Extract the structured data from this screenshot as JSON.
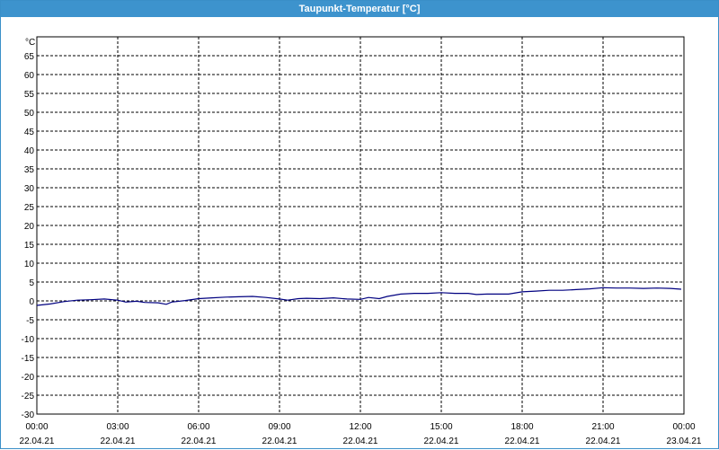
{
  "window": {
    "title": "Taupunkt-Temperatur [°C]"
  },
  "chart_data": {
    "type": "line",
    "title": "Taupunkt-Temperatur [°C]",
    "yunit": "°C",
    "ylim": [
      -30,
      70
    ],
    "yticks": [
      "65",
      "60",
      "55",
      "50",
      "45",
      "40",
      "35",
      "30",
      "25",
      "20",
      "15",
      "10",
      "5",
      "0",
      "-5",
      "-10",
      "-15",
      "-20",
      "-25",
      "-30"
    ],
    "ytick_values": [
      65,
      60,
      55,
      50,
      45,
      40,
      35,
      30,
      25,
      20,
      15,
      10,
      5,
      0,
      -5,
      -10,
      -15,
      -20,
      -25,
      -30
    ],
    "xlim": [
      "22.04.21 00:00",
      "23.04.21 00:00"
    ],
    "xticks": [
      {
        "time": "00:00",
        "date": "22.04.21",
        "hour": 0
      },
      {
        "time": "03:00",
        "date": "22.04.21",
        "hour": 3
      },
      {
        "time": "06:00",
        "date": "22.04.21",
        "hour": 6
      },
      {
        "time": "09:00",
        "date": "22.04.21",
        "hour": 9
      },
      {
        "time": "12:00",
        "date": "22.04.21",
        "hour": 12
      },
      {
        "time": "15:00",
        "date": "22.04.21",
        "hour": 15
      },
      {
        "time": "18:00",
        "date": "22.04.21",
        "hour": 18
      },
      {
        "time": "21:00",
        "date": "22.04.21",
        "hour": 21
      },
      {
        "time": "00:00",
        "date": "23.04.21",
        "hour": 24
      }
    ],
    "grid": true,
    "series": [
      {
        "color": "#000080",
        "x_hours": [
          0,
          0.5,
          1,
          1.5,
          2,
          2.5,
          3,
          3.3,
          3.7,
          4,
          4.5,
          4.8,
          5,
          5.5,
          6,
          6.5,
          7,
          7.5,
          8,
          8.5,
          9,
          9.3,
          9.7,
          10,
          10.5,
          11,
          11.5,
          12,
          12.3,
          12.7,
          13,
          13.5,
          14,
          14.5,
          15,
          15.5,
          16,
          16.3,
          16.7,
          17,
          17.5,
          18,
          18.5,
          19,
          19.5,
          20,
          20.5,
          21,
          21.5,
          22,
          22.5,
          23,
          23.5,
          23.9
        ],
        "y": [
          -1.2,
          -0.8,
          -0.2,
          0.2,
          0.3,
          0.5,
          0.2,
          -0.3,
          -0.1,
          -0.4,
          -0.5,
          -0.9,
          -0.3,
          0.1,
          0.6,
          0.8,
          1.0,
          1.1,
          1.2,
          0.9,
          0.5,
          0.2,
          0.6,
          0.7,
          0.6,
          0.8,
          0.5,
          0.4,
          0.9,
          0.6,
          1.2,
          1.8,
          2.0,
          2.0,
          2.2,
          2.0,
          2.0,
          1.7,
          1.8,
          1.8,
          1.8,
          2.4,
          2.6,
          2.8,
          2.8,
          3.0,
          3.2,
          3.5,
          3.4,
          3.4,
          3.3,
          3.4,
          3.3,
          3.1
        ]
      }
    ]
  }
}
